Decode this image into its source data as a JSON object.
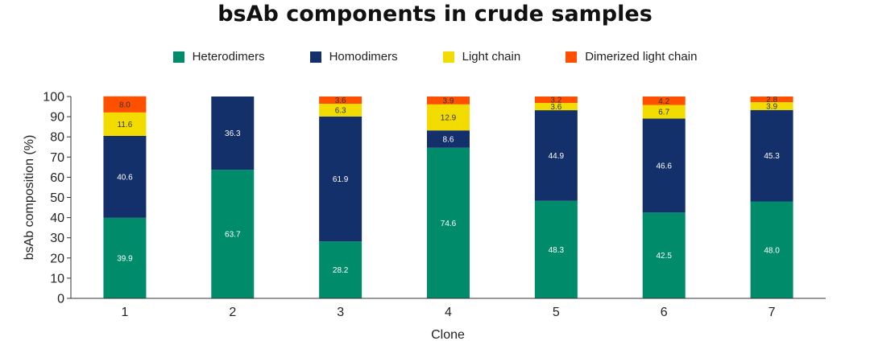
{
  "chart_data": {
    "type": "bar",
    "stacked": true,
    "title": "bsAb components in crude samples",
    "xlabel": "Clone",
    "ylabel": "bsAb composition (%)",
    "ylim": [
      0,
      100
    ],
    "yticks": [
      0,
      10,
      20,
      30,
      40,
      50,
      60,
      70,
      80,
      90,
      100
    ],
    "categories": [
      "1",
      "2",
      "3",
      "4",
      "5",
      "6",
      "7"
    ],
    "legend_position": "top",
    "series": [
      {
        "name": "Heterodimers",
        "color": "#008b6b",
        "label_color": "#ffffff",
        "values": [
          39.9,
          63.7,
          28.2,
          74.6,
          48.3,
          42.5,
          48.0
        ]
      },
      {
        "name": "Homodimers",
        "color": "#14306a",
        "label_color": "#ffffff",
        "values": [
          40.6,
          36.3,
          61.9,
          8.6,
          44.9,
          46.6,
          45.3
        ]
      },
      {
        "name": "Light chain",
        "color": "#f2dc00",
        "label_color": "#333333",
        "values": [
          11.6,
          0,
          6.3,
          12.9,
          3.6,
          6.7,
          3.9
        ]
      },
      {
        "name": "Dimerized light chain",
        "color": "#ff5000",
        "label_color": "#333333",
        "values": [
          8.0,
          0,
          3.6,
          3.9,
          3.2,
          4.2,
          2.8
        ]
      }
    ]
  }
}
